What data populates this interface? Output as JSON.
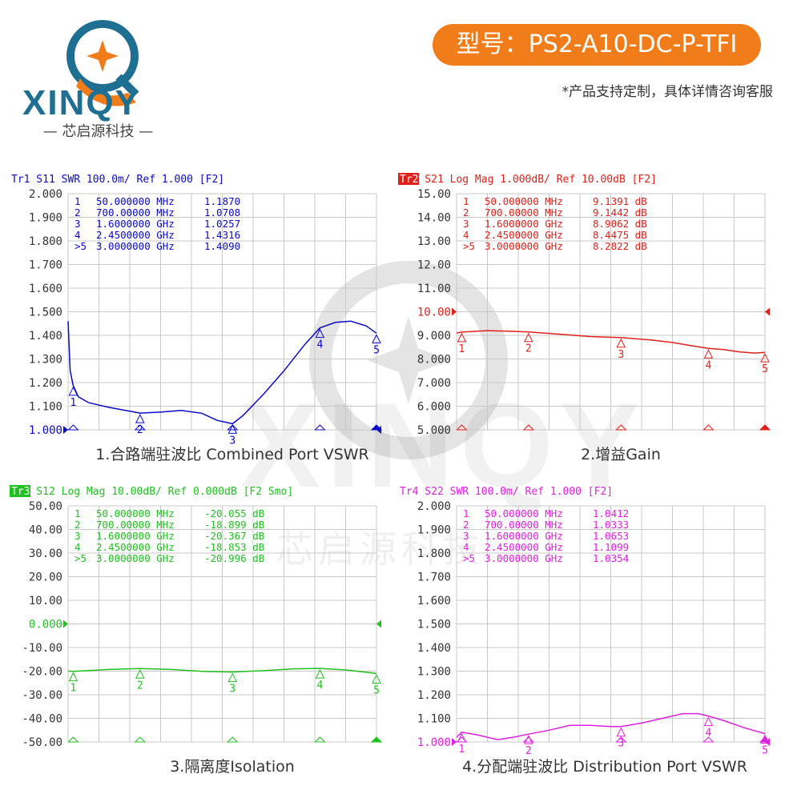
{
  "header": {
    "logo_word": "XINQY",
    "logo_sub": "— 芯启源科技 —",
    "model": "型号：PS2-A10-DC-P-TFI",
    "note": "*产品支持定制，具体详情咨询客服"
  },
  "watermark": {
    "word": "XINQY",
    "cn": "芯启源科技"
  },
  "colors": {
    "blue": "#0a0ac8",
    "red": "#e0201a",
    "green": "#20c020",
    "magenta": "#e020e0",
    "grid": "#c8c8c8",
    "orange": "#f07d1a"
  },
  "chart_data": [
    {
      "type": "line",
      "header": "Tr1  S11  SWR 100.0m/  Ref 1.000  [F2]",
      "trace_tag": "Tr1",
      "header_rest": " S11  SWR 100.0m/  Ref 1.000  [F2]",
      "caption": "1.合路端驻波比 Combined Port VSWR",
      "ylim": [
        1.0,
        2.0
      ],
      "ref": 1.0,
      "yticks": [
        "2.000",
        "1.900",
        "1.800",
        "1.700",
        "1.600",
        "1.500",
        "1.400",
        "1.300",
        "1.200",
        "1.100",
        "1.000"
      ],
      "x_range_mhz": [
        0,
        3000
      ],
      "markers": [
        {
          "id": "1",
          "freq": "50.000000 MHz",
          "value": "1.1870",
          "x": 50,
          "y": 1.187
        },
        {
          "id": "2",
          "freq": "700.00000 MHz",
          "value": "1.0708",
          "x": 700,
          "y": 1.0708
        },
        {
          "id": "3",
          "freq": "1.6000000 GHz",
          "value": "1.0257",
          "x": 1600,
          "y": 1.0257
        },
        {
          "id": "4",
          "freq": "2.4500000 GHz",
          "value": "1.4316",
          "x": 2450,
          "y": 1.4316
        },
        {
          "id": ">5",
          "freq": "3.0000000 GHz",
          "value": "1.4090",
          "x": 3000,
          "y": 1.409
        }
      ],
      "series": [
        {
          "values": [
            [
              0,
              1.46
            ],
            [
              20,
              1.25
            ],
            [
              50,
              1.187
            ],
            [
              100,
              1.14
            ],
            [
              200,
              1.115
            ],
            [
              400,
              1.095
            ],
            [
              700,
              1.0708
            ],
            [
              900,
              1.075
            ],
            [
              1100,
              1.082
            ],
            [
              1300,
              1.07
            ],
            [
              1450,
              1.04
            ],
            [
              1600,
              1.0257
            ],
            [
              1700,
              1.06
            ],
            [
              1900,
              1.15
            ],
            [
              2100,
              1.25
            ],
            [
              2300,
              1.36
            ],
            [
              2450,
              1.4316
            ],
            [
              2600,
              1.455
            ],
            [
              2750,
              1.46
            ],
            [
              2900,
              1.44
            ],
            [
              3000,
              1.409
            ]
          ]
        }
      ]
    },
    {
      "type": "line",
      "header": "Tr2  S21  Log Mag 1.000dB/  Ref 10.00dB  [F2]",
      "trace_tag": "Tr2",
      "header_rest": " S21  Log Mag 1.000dB/  Ref 10.00dB  [F2]",
      "caption": "2.增益Gain",
      "ylim": [
        5.0,
        15.0
      ],
      "ref": 10.0,
      "yticks": [
        "15.00",
        "14.00",
        "13.00",
        "12.00",
        "11.00",
        "10.00",
        "9.000",
        "8.000",
        "7.000",
        "6.000",
        "5.000"
      ],
      "x_range_mhz": [
        0,
        3000
      ],
      "markers": [
        {
          "id": "1",
          "freq": "50.000000 MHz",
          "value": "9.1391 dB",
          "x": 50,
          "y": 9.1391
        },
        {
          "id": "2",
          "freq": "700.00000 MHz",
          "value": "9.1442 dB",
          "x": 700,
          "y": 9.1442
        },
        {
          "id": "3",
          "freq": "1.6000000 GHz",
          "value": "8.9062 dB",
          "x": 1600,
          "y": 8.9062
        },
        {
          "id": "4",
          "freq": "2.4500000 GHz",
          "value": "8.4475 dB",
          "x": 2450,
          "y": 8.4475
        },
        {
          "id": ">5",
          "freq": "3.0000000 GHz",
          "value": "8.2822 dB",
          "x": 3000,
          "y": 8.2822
        }
      ],
      "series": [
        {
          "values": [
            [
              0,
              9.1
            ],
            [
              50,
              9.1391
            ],
            [
              300,
              9.2
            ],
            [
              500,
              9.18
            ],
            [
              700,
              9.1442
            ],
            [
              1000,
              9.05
            ],
            [
              1300,
              8.95
            ],
            [
              1600,
              8.9062
            ],
            [
              1900,
              8.8
            ],
            [
              2100,
              8.7
            ],
            [
              2300,
              8.55
            ],
            [
              2450,
              8.4475
            ],
            [
              2600,
              8.4
            ],
            [
              2750,
              8.3
            ],
            [
              2900,
              8.25
            ],
            [
              3000,
              8.2822
            ]
          ]
        }
      ]
    },
    {
      "type": "line",
      "header": "Tr3  S12  Log Mag 10.00dB/  Ref 0.000dB  [F2 Smo]",
      "trace_tag": "Tr3",
      "header_rest": " S12  Log Mag 10.00dB/  Ref 0.000dB  [F2 Smo]",
      "caption": "3.隔离度Isolation",
      "ylim": [
        -50.0,
        50.0
      ],
      "ref": 0.0,
      "yticks": [
        "50.00",
        "40.00",
        "30.00",
        "20.00",
        "10.00",
        "0.000",
        "-10.00",
        "-20.00",
        "-30.00",
        "-40.00",
        "-50.00"
      ],
      "x_range_mhz": [
        0,
        3000
      ],
      "markers": [
        {
          "id": "1",
          "freq": "50.000000 MHz",
          "value": "-20.055 dB",
          "x": 50,
          "y": -20.055
        },
        {
          "id": "2",
          "freq": "700.00000 MHz",
          "value": "-18.899 dB",
          "x": 700,
          "y": -18.899
        },
        {
          "id": "3",
          "freq": "1.6000000 GHz",
          "value": "-20.367 dB",
          "x": 1600,
          "y": -20.367
        },
        {
          "id": "4",
          "freq": "2.4500000 GHz",
          "value": "-18.853 dB",
          "x": 2450,
          "y": -18.853
        },
        {
          "id": ">5",
          "freq": "3.0000000 GHz",
          "value": "-20.996 dB",
          "x": 3000,
          "y": -20.996
        }
      ],
      "series": [
        {
          "values": [
            [
              0,
              -20.0
            ],
            [
              50,
              -20.055
            ],
            [
              400,
              -19.3
            ],
            [
              700,
              -18.899
            ],
            [
              1000,
              -19.3
            ],
            [
              1300,
              -20.1
            ],
            [
              1600,
              -20.367
            ],
            [
              1900,
              -19.8
            ],
            [
              2200,
              -19.0
            ],
            [
              2450,
              -18.853
            ],
            [
              2700,
              -19.5
            ],
            [
              3000,
              -20.996
            ]
          ]
        }
      ]
    },
    {
      "type": "line",
      "header": "Tr4  S22  SWR 100.0m/  Ref 1.000  [F2]",
      "trace_tag": "Tr4",
      "header_rest": " S22  SWR 100.0m/  Ref 1.000  [F2]",
      "caption": "4.分配端驻波比 Distribution  Port VSWR",
      "ylim": [
        1.0,
        2.0
      ],
      "ref": 1.0,
      "yticks": [
        "2.000",
        "1.900",
        "1.800",
        "1.700",
        "1.600",
        "1.500",
        "1.400",
        "1.300",
        "1.200",
        "1.100",
        "1.000"
      ],
      "x_range_mhz": [
        0,
        3000
      ],
      "markers": [
        {
          "id": "1",
          "freq": "50.000000 MHz",
          "value": "1.0412",
          "x": 50,
          "y": 1.0412
        },
        {
          "id": "2",
          "freq": "700.00000 MHz",
          "value": "1.0333",
          "x": 700,
          "y": 1.0333
        },
        {
          "id": "3",
          "freq": "1.6000000 GHz",
          "value": "1.0653",
          "x": 1600,
          "y": 1.0653
        },
        {
          "id": "4",
          "freq": "2.4500000 GHz",
          "value": "1.1099",
          "x": 2450,
          "y": 1.1099
        },
        {
          "id": ">5",
          "freq": "3.0000000 GHz",
          "value": "1.0354",
          "x": 3000,
          "y": 1.0354
        }
      ],
      "series": [
        {
          "values": [
            [
              0,
              1.02
            ],
            [
              50,
              1.0412
            ],
            [
              200,
              1.03
            ],
            [
              400,
              1.01
            ],
            [
              550,
              1.02
            ],
            [
              700,
              1.0333
            ],
            [
              900,
              1.05
            ],
            [
              1100,
              1.07
            ],
            [
              1300,
              1.07
            ],
            [
              1500,
              1.065
            ],
            [
              1600,
              1.0653
            ],
            [
              1800,
              1.08
            ],
            [
              2000,
              1.1
            ],
            [
              2200,
              1.12
            ],
            [
              2350,
              1.12
            ],
            [
              2450,
              1.1099
            ],
            [
              2600,
              1.09
            ],
            [
              2800,
              1.06
            ],
            [
              3000,
              1.0354
            ]
          ]
        }
      ]
    }
  ]
}
